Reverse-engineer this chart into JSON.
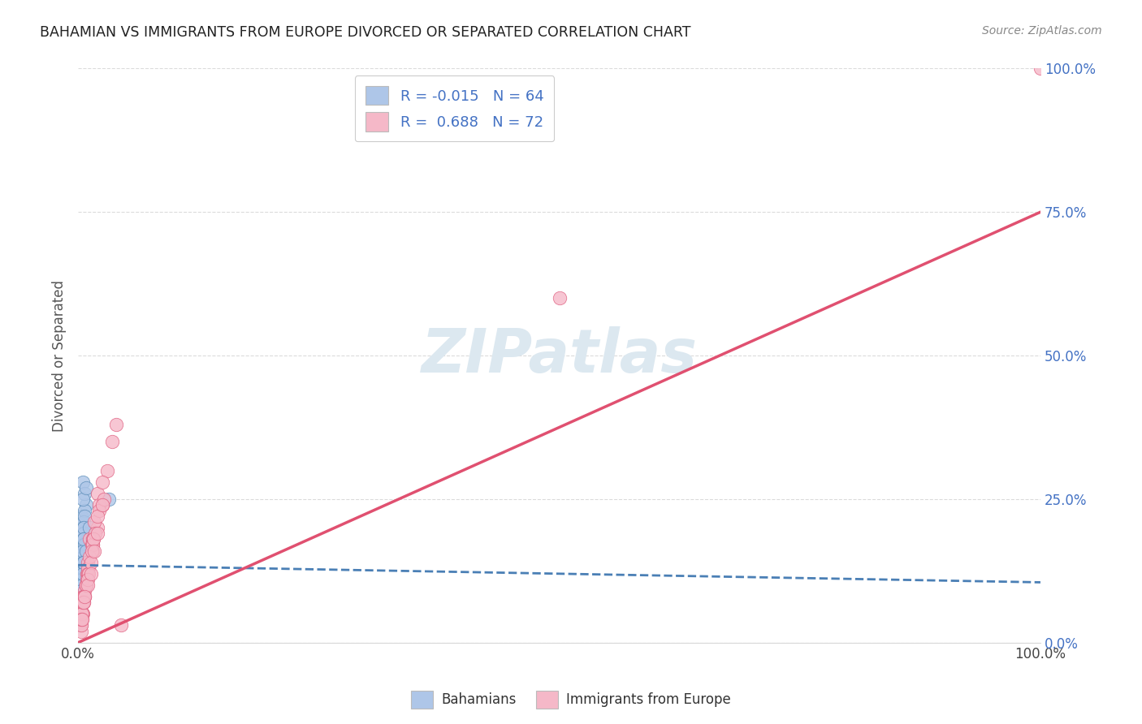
{
  "title": "BAHAMIAN VS IMMIGRANTS FROM EUROPE DIVORCED OR SEPARATED CORRELATION CHART",
  "source": "Source: ZipAtlas.com",
  "ylabel": "Divorced or Separated",
  "blue_color": "#aec6e8",
  "pink_color": "#f5b8c8",
  "blue_edge_color": "#5b8db8",
  "pink_edge_color": "#e06080",
  "blue_line_color": "#4a7fb5",
  "pink_line_color": "#e05070",
  "background_color": "#ffffff",
  "grid_color": "#d8d8d8",
  "watermark_color": "#dce8f0",
  "ytick_color": "#4472c4",
  "legend_text_color": "#4472c4",
  "blue_R": -0.015,
  "blue_N": 64,
  "pink_R": 0.688,
  "pink_N": 72,
  "blue_line_y0": 13.5,
  "blue_line_y100": 10.5,
  "pink_line_y0": 0.0,
  "pink_line_y100": 75.0,
  "blue_x": [
    0.3,
    0.5,
    0.6,
    0.8,
    0.4,
    0.5,
    0.7,
    0.6,
    0.4,
    0.3,
    0.5,
    0.6,
    0.7,
    0.4,
    0.5,
    0.6,
    0.3,
    0.5,
    0.4,
    0.6,
    0.5,
    0.4,
    0.6,
    0.5,
    0.7,
    0.4,
    0.6,
    0.5,
    0.4,
    0.3,
    0.6,
    0.5,
    0.4,
    0.6,
    0.5,
    0.8,
    0.4,
    0.5,
    0.6,
    0.4,
    0.5,
    0.3,
    0.6,
    0.4,
    0.5,
    0.6,
    0.4,
    0.5,
    0.6,
    0.4,
    3.2,
    0.5,
    0.7,
    0.6,
    0.4,
    0.5,
    0.6,
    0.4,
    0.5,
    0.3,
    1.2,
    0.8,
    0.5,
    0.6
  ],
  "blue_y": [
    22,
    28,
    18,
    24,
    15,
    20,
    26,
    17,
    13,
    11,
    16,
    19,
    23,
    14,
    18,
    21,
    12,
    16,
    14,
    20,
    25,
    13,
    17,
    15,
    22,
    12,
    19,
    16,
    11,
    10,
    18,
    14,
    12,
    19,
    15,
    27,
    11,
    16,
    13,
    12,
    17,
    9,
    20,
    10,
    15,
    18,
    11,
    14,
    17,
    10,
    25,
    13,
    17,
    15,
    11,
    16,
    18,
    10,
    14,
    9,
    20,
    16,
    12,
    14
  ],
  "pink_x": [
    0.2,
    0.4,
    0.6,
    0.8,
    1.0,
    1.5,
    2.0,
    2.5,
    0.3,
    0.6,
    1.0,
    1.5,
    0.5,
    0.8,
    1.2,
    2.0,
    0.4,
    0.7,
    1.1,
    1.7,
    0.3,
    0.6,
    1.0,
    1.5,
    3.0,
    3.5,
    0.5,
    0.9,
    1.4,
    2.2,
    0.3,
    0.5,
    0.7,
    1.0,
    1.6,
    0.4,
    0.6,
    1.0,
    1.5,
    2.5,
    0.4,
    0.8,
    1.2,
    0.5,
    0.9,
    1.4,
    2.2,
    0.3,
    0.7,
    1.1,
    1.8,
    2.7,
    4.0,
    0.4,
    0.8,
    1.3,
    2.0,
    0.5,
    1.0,
    1.6,
    4.5,
    0.3,
    0.6,
    1.0,
    1.7,
    2.5,
    0.4,
    0.7,
    1.3,
    2.0,
    50.0,
    100.0
  ],
  "pink_y": [
    3,
    5,
    8,
    10,
    12,
    16,
    20,
    24,
    4,
    8,
    12,
    17,
    7,
    10,
    18,
    26,
    5,
    9,
    13,
    21,
    3,
    7,
    14,
    18,
    30,
    35,
    8,
    12,
    17,
    24,
    2,
    5,
    8,
    13,
    18,
    4,
    8,
    12,
    17,
    28,
    5,
    10,
    15,
    7,
    11,
    16,
    23,
    3,
    8,
    12,
    19,
    25,
    38,
    5,
    10,
    14,
    22,
    7,
    11,
    18,
    3,
    4,
    7,
    10,
    16,
    24,
    4,
    8,
    12,
    19,
    60,
    100
  ],
  "xlim": [
    0,
    100
  ],
  "ylim": [
    0,
    100
  ],
  "yticks": [
    0,
    25,
    50,
    75,
    100
  ],
  "ytick_labels": [
    "0.0%",
    "25.0%",
    "50.0%",
    "75.0%",
    "100.0%"
  ],
  "xtick_labels_left": "0.0%",
  "xtick_labels_right": "100.0%"
}
